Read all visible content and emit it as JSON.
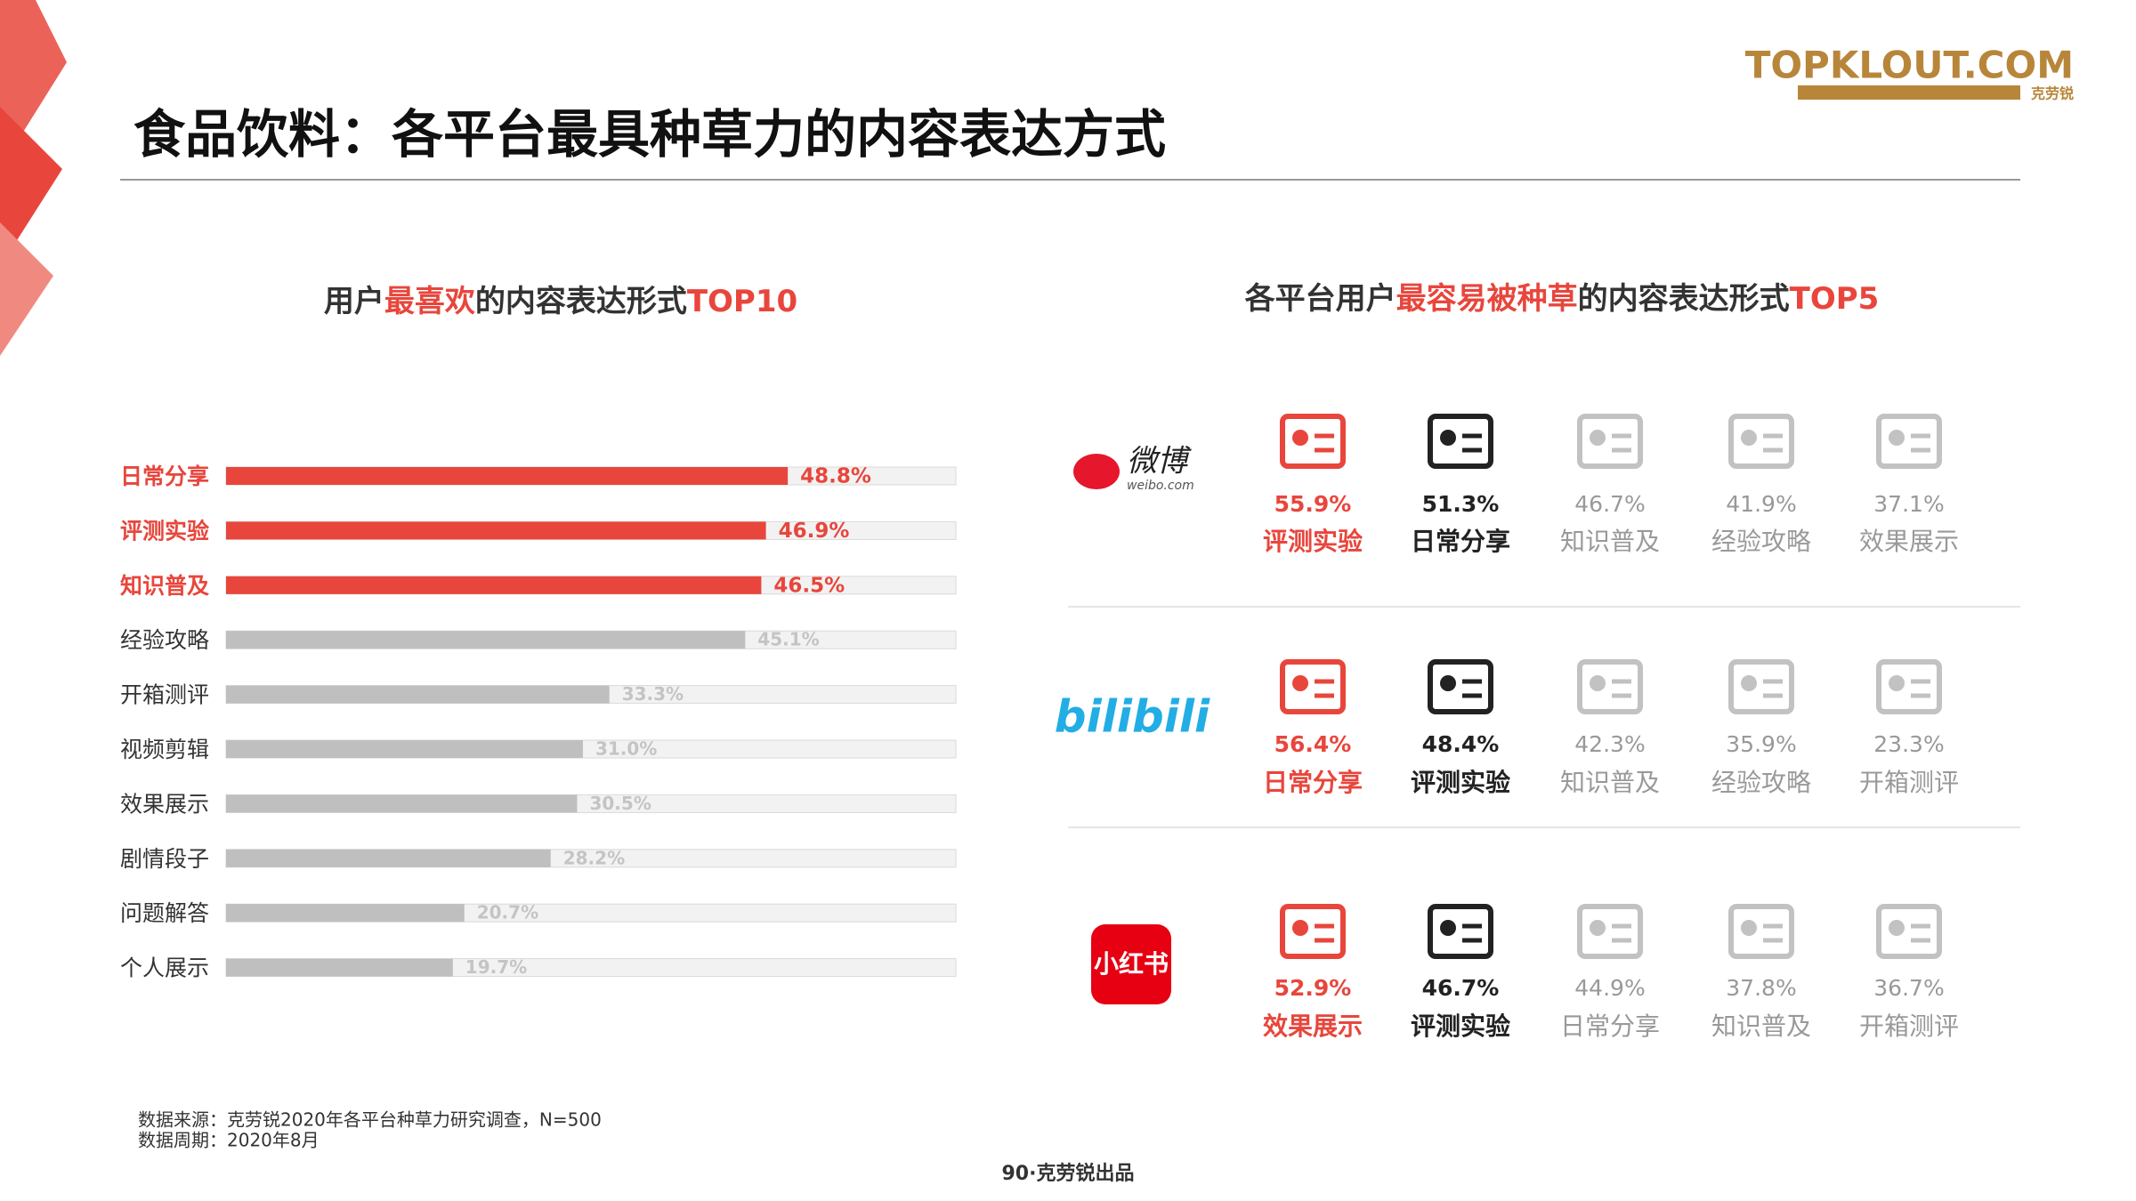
{
  "header": {
    "title": "食品饮料：各平台最具种草力的内容表达方式",
    "logo": "TOPKLOUT.COM",
    "logo_sub": "克劳锐"
  },
  "chart_data": {
    "type": "hbar",
    "title_parts": [
      {
        "text": "用户",
        "color": "#333333"
      },
      {
        "text": "最喜欢",
        "color": "#e8463c"
      },
      {
        "text": "的内容表达形式",
        "color": "#333333"
      },
      {
        "text": "TOP10",
        "color": "#e8463c"
      }
    ],
    "categories": [
      "日常分享",
      "评测实验",
      "知识普及",
      "经验攻略",
      "开箱测评",
      "视频剪辑",
      "效果展示",
      "剧情段子",
      "问题解答",
      "个人展示"
    ],
    "values": [
      48.8,
      46.9,
      46.5,
      45.1,
      33.3,
      31.0,
      30.5,
      28.2,
      20.7,
      19.7
    ],
    "value_labels": [
      "48.8%",
      "46.9%",
      "46.5%",
      "45.1%",
      "33.3%",
      "31.0%",
      "30.5%",
      "28.2%",
      "20.7%",
      "19.7%"
    ],
    "colors": [
      "#e8463c",
      "#e8463c",
      "#e8463c",
      "#bfbfbf",
      "#bfbfbf",
      "#bfbfbf",
      "#bfbfbf",
      "#bfbfbf",
      "#bfbfbf",
      "#bfbfbf"
    ],
    "xlim": [
      0,
      63.4
    ]
  },
  "platforms_title_parts": [
    {
      "text": "各平台用户",
      "color": "#333333"
    },
    {
      "text": "最容易被种草",
      "color": "#e8463c"
    },
    {
      "text": "的内容表达形式",
      "color": "#333333"
    },
    {
      "text": "TOP5",
      "color": "#e8463c"
    }
  ],
  "platforms": [
    {
      "name": "微博",
      "sub": "weibo.com",
      "color": "#e6162d",
      "items": [
        {
          "value": "55.9%",
          "label": "评测实验",
          "color": "#e8463c",
          "bold": true
        },
        {
          "value": "51.3%",
          "label": "日常分享",
          "color": "#222222",
          "bold": true
        },
        {
          "value": "46.7%",
          "label": "知识普及",
          "color": "#999999",
          "bold": false
        },
        {
          "value": "41.9%",
          "label": "经验攻略",
          "color": "#999999",
          "bold": false
        },
        {
          "value": "37.1%",
          "label": "效果展示",
          "color": "#999999",
          "bold": false
        }
      ]
    },
    {
      "name": "bilibili",
      "color": "#23ade5",
      "items": [
        {
          "value": "56.4%",
          "label": "日常分享",
          "color": "#e8463c",
          "bold": true
        },
        {
          "value": "48.4%",
          "label": "评测实验",
          "color": "#222222",
          "bold": true
        },
        {
          "value": "42.3%",
          "label": "知识普及",
          "color": "#999999",
          "bold": false
        },
        {
          "value": "35.9%",
          "label": "经验攻略",
          "color": "#999999",
          "bold": false
        },
        {
          "value": "23.3%",
          "label": "开箱测评",
          "color": "#999999",
          "bold": false
        }
      ]
    },
    {
      "name": "小红书",
      "color": "#e60012",
      "items": [
        {
          "value": "52.9%",
          "label": "效果展示",
          "color": "#e8463c",
          "bold": true
        },
        {
          "value": "46.7%",
          "label": "评测实验",
          "color": "#222222",
          "bold": true
        },
        {
          "value": "44.9%",
          "label": "日常分享",
          "color": "#999999",
          "bold": false
        },
        {
          "value": "37.8%",
          "label": "知识普及",
          "color": "#999999",
          "bold": false
        },
        {
          "value": "36.7%",
          "label": "开箱测评",
          "color": "#999999",
          "bold": false
        }
      ]
    }
  ],
  "footer": {
    "source": "数据来源：克劳锐2020年各平台种草力研究调查，N=500",
    "period": "数据周期：2020年8月",
    "page": "90·克劳锐出品"
  }
}
